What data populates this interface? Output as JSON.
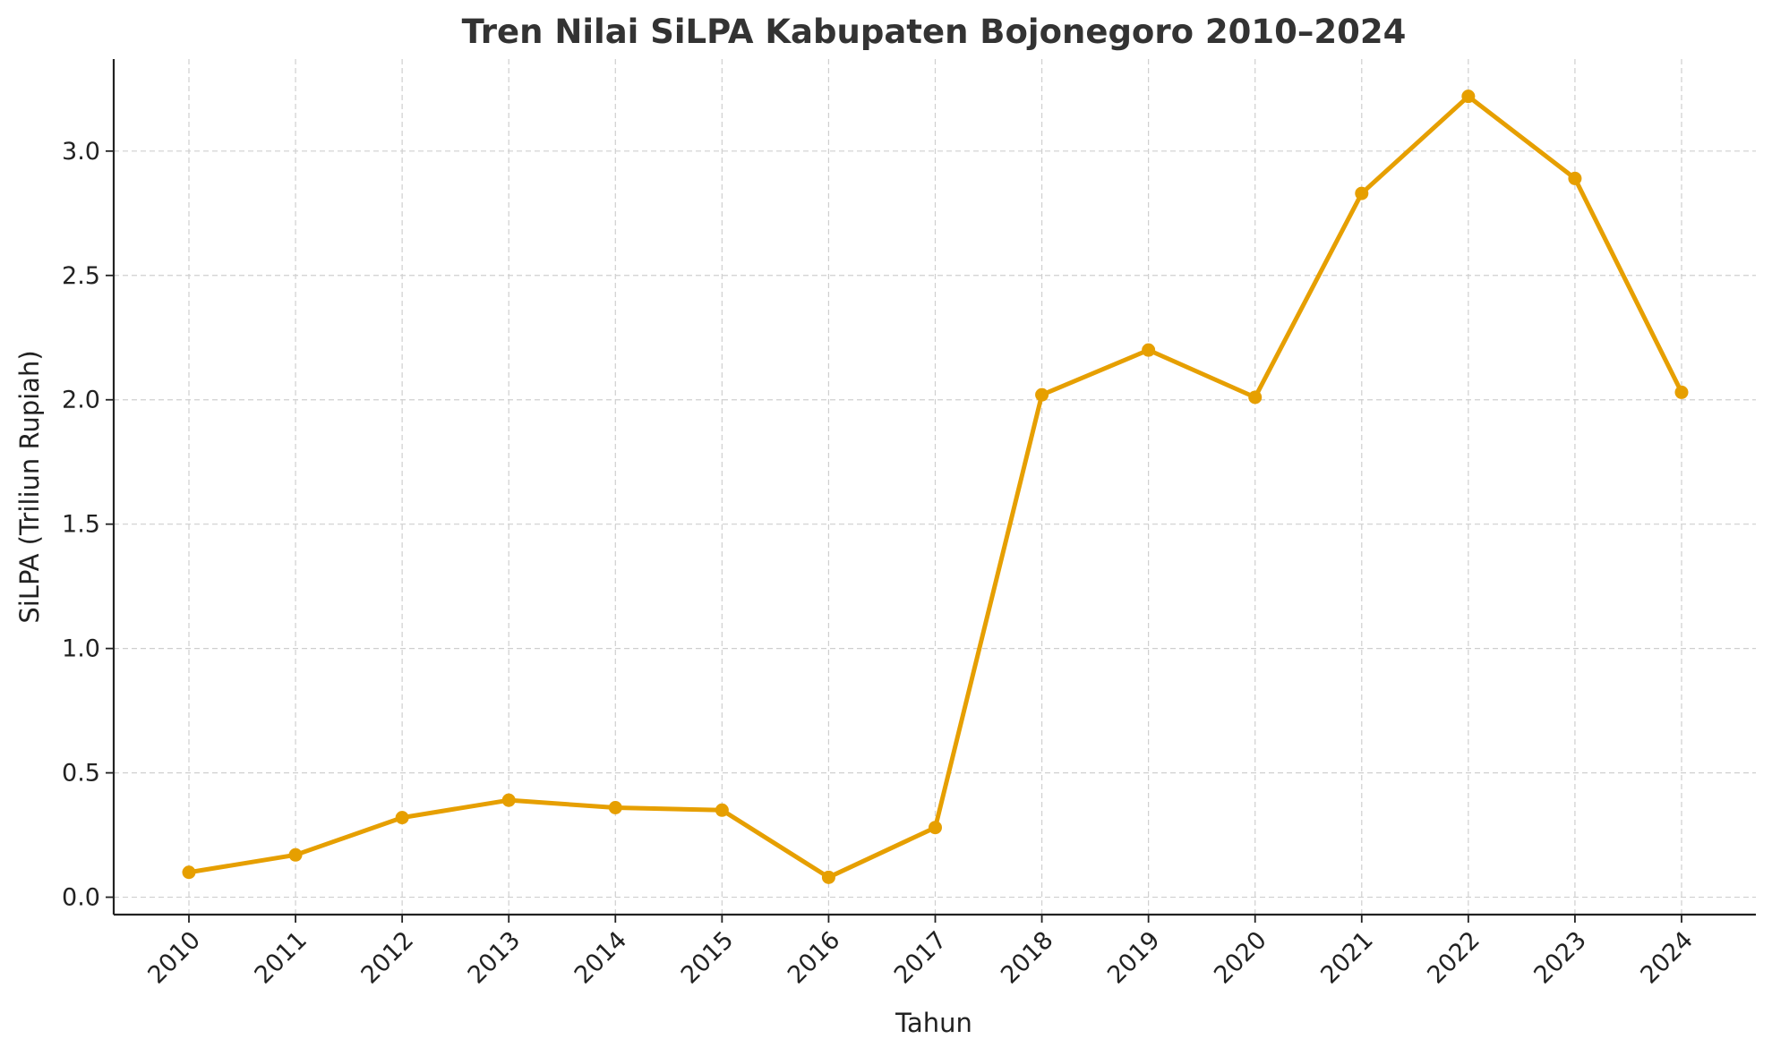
{
  "chart_data": {
    "type": "line",
    "title": "Tren Nilai SiLPA Kabupaten Bojonegoro 2010–2024",
    "xlabel": "Tahun",
    "ylabel": "SiLPA (Triliun Rupiah)",
    "categories": [
      "2010",
      "2011",
      "2012",
      "2013",
      "2014",
      "2015",
      "2016",
      "2017",
      "2018",
      "2019",
      "2020",
      "2021",
      "2022",
      "2023",
      "2024"
    ],
    "series": [
      {
        "values": [
          0.1,
          0.17,
          0.32,
          0.39,
          0.36,
          0.35,
          0.08,
          0.28,
          2.02,
          2.2,
          2.01,
          2.83,
          3.22,
          2.89,
          2.03
        ],
        "color": "#E69F00",
        "marker": "circle"
      }
    ],
    "yticks": [
      "0.0",
      "0.5",
      "1.0",
      "1.5",
      "2.0",
      "2.5",
      "3.0"
    ],
    "ylim": [
      -0.07,
      3.37
    ],
    "grid": true,
    "legend": "none"
  }
}
